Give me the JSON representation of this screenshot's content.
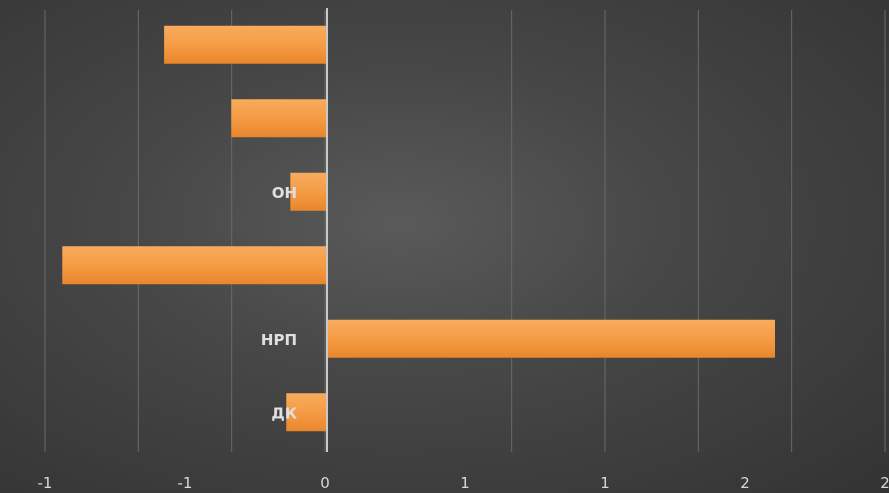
{
  "chart_data": {
    "type": "bar",
    "orientation": "horizontal",
    "title": "",
    "categories": [
      "",
      "",
      "ОНФ",
      "",
      "НРП",
      "ДК"
    ],
    "category_labels_shown": [
      "",
      "",
      "ОН",
      "",
      "НРП",
      "ДК"
    ],
    "values": [
      -0.8,
      -0.47,
      -0.18,
      -1.3,
      2.2,
      -0.2
    ],
    "x_tick_labels": [
      "-1",
      "-1",
      "0",
      "1",
      "1",
      "2",
      "2"
    ],
    "xlim": [
      -2.0,
      2.5
    ],
    "grid": true,
    "legend": "none",
    "colors": {
      "bar": "#f59a42",
      "bar_light": "#f7ac5e",
      "bar_dark": "#e8862c",
      "axis": "#c9c9c9",
      "grid": "#6a6a6a"
    }
  }
}
